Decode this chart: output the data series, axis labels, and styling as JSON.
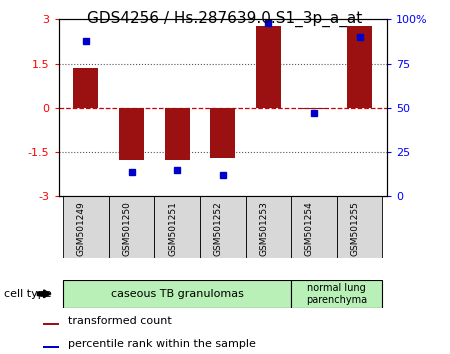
{
  "title": "GDS4256 / Hs.287639.0.S1_3p_a_at",
  "samples": [
    "GSM501249",
    "GSM501250",
    "GSM501251",
    "GSM501252",
    "GSM501253",
    "GSM501254",
    "GSM501255"
  ],
  "transformed_count": [
    1.35,
    -1.75,
    -1.75,
    -1.68,
    2.78,
    -0.05,
    2.78
  ],
  "percentile_rank": [
    88,
    14,
    15,
    12,
    98,
    47,
    90
  ],
  "ylim_left": [
    -3,
    3
  ],
  "ylim_right": [
    0,
    100
  ],
  "yticks_left": [
    -3,
    -1.5,
    0,
    1.5,
    3
  ],
  "yticks_right": [
    0,
    25,
    50,
    75,
    100
  ],
  "ytick_labels_right": [
    "0",
    "25",
    "50",
    "75",
    "100%"
  ],
  "bar_color": "#9b1010",
  "dot_color": "#0000cc",
  "zero_line_color": "#cc0000",
  "dotted_line_color": "#555555",
  "group1_label": "caseous TB granulomas",
  "group2_label": "normal lung\nparenchyma",
  "group1_indices": [
    0,
    1,
    2,
    3,
    4
  ],
  "group2_indices": [
    5,
    6
  ],
  "group1_color": "#b8f0b8",
  "group2_color": "#b8f0b8",
  "xtick_bg_color": "#d8d8d8",
  "cell_type_label": "cell type",
  "legend_bar_label": "transformed count",
  "legend_dot_label": "percentile rank within the sample",
  "title_fontsize": 11,
  "tick_fontsize": 8,
  "legend_fontsize": 8
}
